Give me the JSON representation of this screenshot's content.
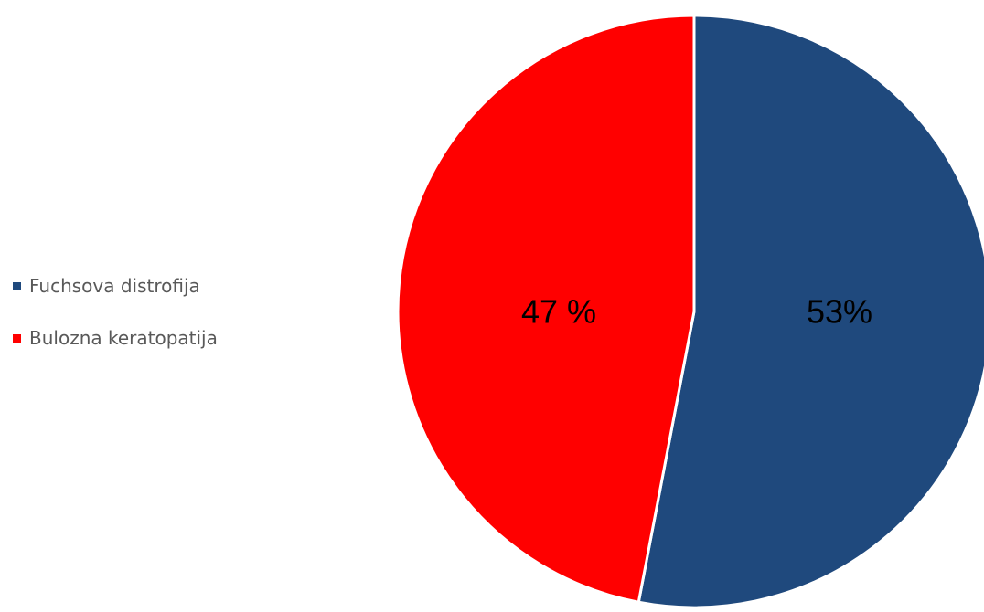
{
  "chart_data": {
    "type": "pie",
    "categories": [
      "Fuchsova distrofija",
      "Bulozna keratopatija"
    ],
    "values": [
      53,
      47
    ],
    "labels": [
      "53%",
      "47 %"
    ],
    "colors": [
      "#1f497d",
      "#ff0000"
    ],
    "legend_position": "left"
  }
}
